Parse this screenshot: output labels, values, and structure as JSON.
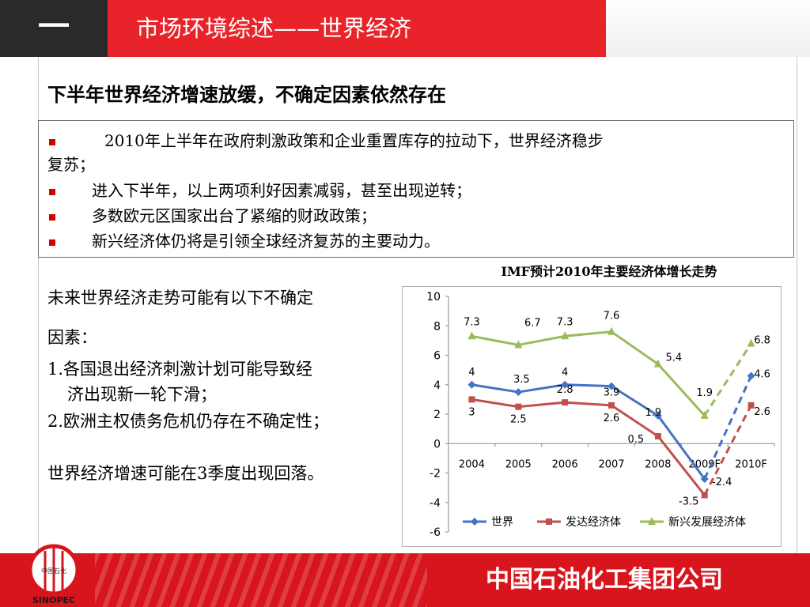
{
  "header": {
    "section_number": "一",
    "title": "市场环境综述——世界经济"
  },
  "subtitle": "下半年世界经济增速放缓，不确定因素依然存在",
  "bullets": [
    {
      "line1": "2010年上半年在政府刺激政策和企业重置库存的拉动下，世界经济稳步",
      "line2": "复苏；"
    },
    {
      "line1": "进入下半年，以上两项利好因素减弱，甚至出现逆转；"
    },
    {
      "line1": "多数欧元区国家出台了紧缩的财政政策；"
    },
    {
      "line1": "新兴经济体仍将是引领全球经济复苏的主要动力。"
    }
  ],
  "uncertainty": {
    "intro_line1": "未来世界经济走势可能有以下不确定",
    "intro_line2": "因素：",
    "item1_line1": "1.各国退出经济刺激计划可能导致经",
    "item1_line2": "济出现新一轮下滑；",
    "item2": "2.欧洲主权债务危机仍存在不确定性；",
    "conclusion": "世界经济增速可能在3季度出现回落。"
  },
  "footer": {
    "company": "中国石油化工集团公司",
    "logo_text": "中国石化"
  },
  "colors": {
    "brand_red": "#e8232a",
    "world": "#4472c4",
    "developed": "#c0504d",
    "emerging": "#9bbb59"
  },
  "chart_data": {
    "type": "line",
    "title": "IMF预计2010年主要经济体增长走势",
    "categories": [
      "2004",
      "2005",
      "2006",
      "2007",
      "2008",
      "2009F",
      "2010F"
    ],
    "ylim": [
      -6,
      10
    ],
    "yticks": [
      "10",
      "8",
      "6",
      "4",
      "2",
      "0",
      "-2",
      "-4",
      "-6"
    ],
    "legend_position": "bottom",
    "grid": false,
    "forecast_dashed_from": "2009F",
    "series": [
      {
        "name": "世界",
        "values": [
          4,
          3.5,
          4,
          3.9,
          1.9,
          -2.4,
          4.6
        ],
        "labels": [
          "4",
          "3.5",
          "4",
          "3.9",
          "1.9",
          "-2.4",
          "4.6"
        ],
        "color": "#4472c4",
        "marker": "diamond"
      },
      {
        "name": "发达经济体",
        "values": [
          3,
          2.5,
          2.8,
          2.6,
          0.5,
          -3.5,
          2.6
        ],
        "labels": [
          "3",
          "2.5",
          "2.8",
          "2.6",
          "0.5",
          "-3.5",
          "2.6"
        ],
        "color": "#c0504d",
        "marker": "square"
      },
      {
        "name": "新兴发展经济体",
        "values": [
          7.3,
          6.7,
          7.3,
          7.6,
          5.4,
          1.9,
          6.8
        ],
        "labels": [
          "7.3",
          "6.7",
          "7.3",
          "7.6",
          "5.4",
          "1.9",
          "6.8"
        ],
        "color": "#9bbb59",
        "marker": "triangle"
      }
    ]
  }
}
